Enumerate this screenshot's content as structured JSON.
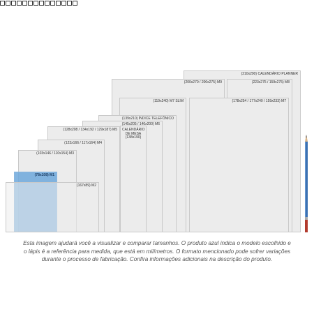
{
  "header": {
    "glyph_count": 14
  },
  "cards": {
    "planner": "(210x290) CALENDÁRIO PLANNER",
    "m9": "(200x270 / 200x275) M9",
    "m8": "(223x275 / 159x275) M8",
    "m7slim": "(119x240) M7 SLIM",
    "m7": "(178x254 / 177x240 / 159x233) M7",
    "indice": "(139x210) ÍNDICE TELEFÔNICO",
    "m6": "(145x205 / 140x200) M6",
    "calendario": "CALENDÁRIO DE MESA (138x190)",
    "m5": "(128x208 / 134x192 / 129x187) M5",
    "m4": "(123x166 / 117x164) M4",
    "m3": "(103x146 / 110x154) M3",
    "m1": "(78x108) M1",
    "m2": "(167x89) M2"
  },
  "caption": "Esta imagem ajudará você a visualizar e comparar tamanhos. O produto azul indica o modelo escolhido e o lápis é a referência para medida, que está em milímetros. O formato mencionado pode sofrer variações durante o processo de fabricação. Confira informações adicionais na descrição do produto.",
  "colors": {
    "selected": "#6da8dc",
    "card": "#ececec",
    "pencil": "#3a6fb0",
    "pencil_tip": "#b23b2e"
  }
}
